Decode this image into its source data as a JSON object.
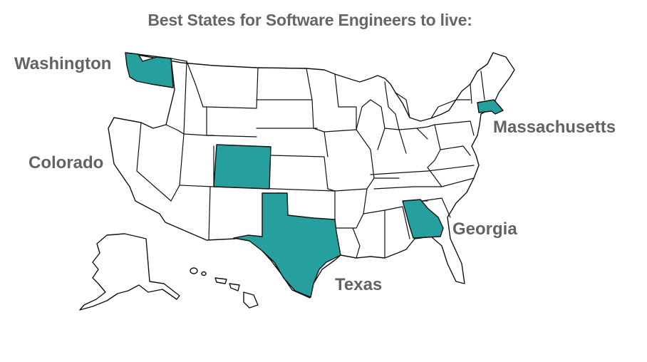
{
  "title": "Best States for Software Engineers to live:",
  "labels": {
    "washington": "Washington",
    "colorado": "Colorado",
    "massachusetts": "Massachusetts",
    "georgia": "Georgia",
    "texas": "Texas"
  },
  "highlight_color": "#26a09f",
  "highlighted_states": [
    "Washington",
    "Colorado",
    "Massachusetts",
    "Georgia",
    "Texas"
  ]
}
